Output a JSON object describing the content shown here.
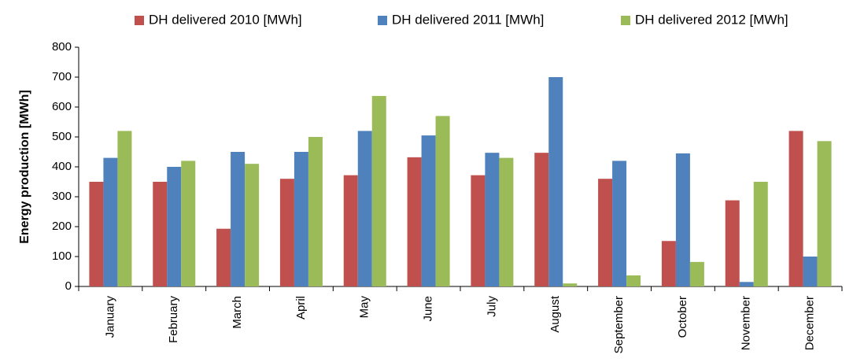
{
  "chart_data": {
    "type": "bar",
    "title": "",
    "xlabel": "",
    "ylabel": "Energy production [MWh]",
    "ylim": [
      0,
      800
    ],
    "yticks": [
      0,
      100,
      200,
      300,
      400,
      500,
      600,
      700,
      800
    ],
    "grid": false,
    "legend_position": "top",
    "categories": [
      "January",
      "February",
      "March",
      "April",
      "May",
      "June",
      "July",
      "August",
      "September",
      "October",
      "November",
      "December"
    ],
    "series": [
      {
        "name": "DH delivered 2010 [MWh]",
        "color": "#c0504d",
        "values": [
          350,
          350,
          193,
          360,
          372,
          432,
          372,
          447,
          360,
          152,
          288,
          520
        ]
      },
      {
        "name": "DH delivered 2011 [MWh]",
        "color": "#4f81bd",
        "values": [
          430,
          400,
          450,
          450,
          520,
          505,
          447,
          700,
          420,
          445,
          15,
          100
        ]
      },
      {
        "name": "DH delivered 2012 [MWh]",
        "color": "#9bbb59",
        "values": [
          520,
          420,
          410,
          500,
          637,
          570,
          430,
          10,
          37,
          82,
          350,
          486
        ]
      }
    ]
  }
}
